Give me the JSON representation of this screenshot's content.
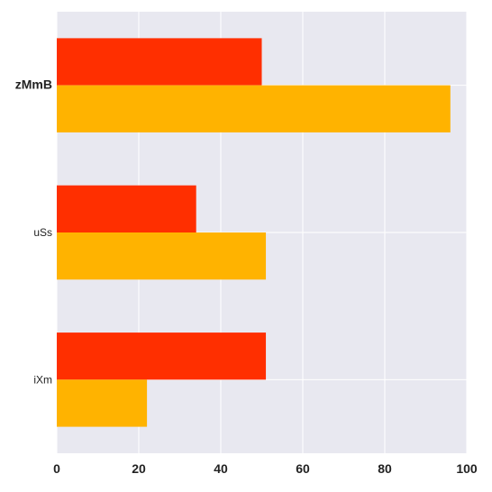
{
  "chart_data": {
    "type": "bar",
    "orientation": "horizontal",
    "categories": [
      "zMmB",
      "uSs",
      "iXm"
    ],
    "emphasized_category": "zMmB",
    "series": [
      {
        "values": [
          50,
          34,
          51
        ],
        "color": "#ff2f00"
      },
      {
        "values": [
          96,
          51,
          22
        ],
        "color": "#ffb300"
      }
    ],
    "xlim": [
      0,
      100
    ],
    "xticks": [
      0,
      20,
      40,
      60,
      80,
      100
    ],
    "title": "",
    "xlabel": "",
    "ylabel": "",
    "grid": true,
    "legend": "none",
    "plot_background": "#e8e8f0",
    "grid_color": "#ffffff"
  }
}
